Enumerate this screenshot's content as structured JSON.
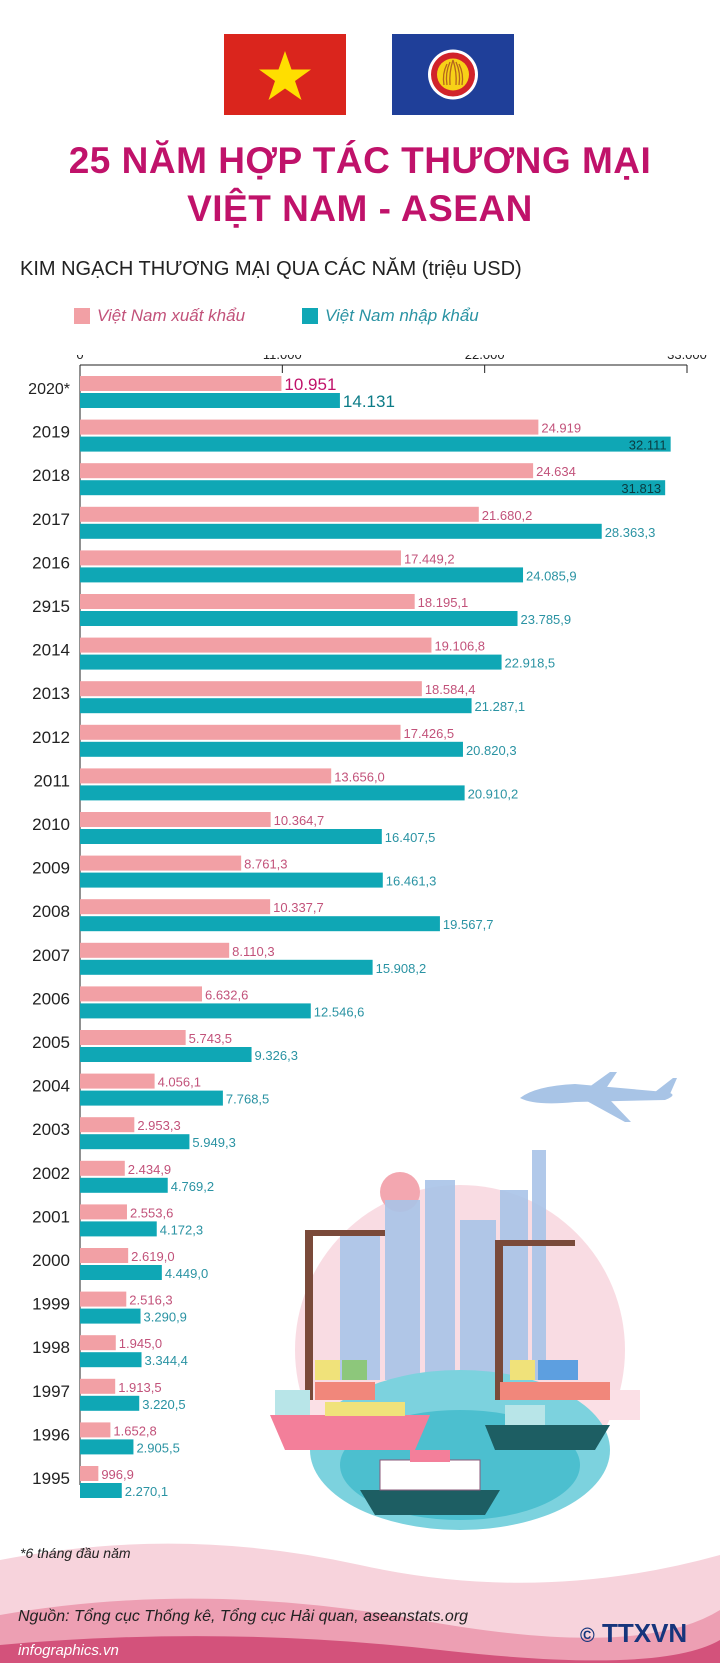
{
  "title_line1": "25 NĂM HỢP TÁC THƯƠNG MẠI",
  "title_line2": "VIỆT NAM - ASEAN",
  "legend": {
    "export_label": "Việt Nam xuất khẩu",
    "import_label": "Việt Nam nhập khẩu"
  },
  "footnote": "*6 tháng đầu năm",
  "source": "Nguồn: Tổng cục Thống kê, Tổng cục Hải quan, aseanstats.org",
  "site": "infographics.vn",
  "agency": "TTXVN",
  "colors": {
    "title": "#c0126a",
    "export": "#f2a0a5",
    "import": "#0fa7b5",
    "export_text": "#c2527a",
    "import_text": "#2a93a3",
    "vn_flag": "#da251d",
    "asean_flag": "#1f3f99"
  },
  "chart_data": {
    "type": "bar",
    "orientation": "horizontal",
    "title": "KIM NGẠCH THƯƠNG MẠI QUA CÁC NĂM (triệu USD)",
    "xlim": [
      0,
      33000
    ],
    "x_ticks": [
      "0",
      "11.000",
      "22.000",
      "33.000"
    ],
    "x_tick_values": [
      0,
      11000,
      22000,
      33000
    ],
    "categories": [
      "2020*",
      "2019",
      "2018",
      "2017",
      "2016",
      "2915",
      "2014",
      "2013",
      "2012",
      "2011",
      "2010",
      "2009",
      "2008",
      "2007",
      "2006",
      "2005",
      "2004",
      "2003",
      "2002",
      "2001",
      "2000",
      "1999",
      "1998",
      "1997",
      "1996",
      "1995"
    ],
    "series": [
      {
        "name": "Việt Nam xuất khẩu",
        "values": [
          10951,
          24919,
          24634,
          21680.2,
          17449.2,
          18195.1,
          19106.8,
          18584.4,
          17426.5,
          13656.0,
          10364.7,
          8761.3,
          10337.7,
          8110.3,
          6632.6,
          5743.5,
          4056.1,
          2953.3,
          2434.9,
          2553.6,
          2619.0,
          2516.3,
          1945.0,
          1913.5,
          1652.8,
          996.9
        ],
        "labels": [
          "10.951",
          "24.919",
          "24.634",
          "21.680,2",
          "17.449,2",
          "18.195,1",
          "19.106,8",
          "18.584,4",
          "17.426,5",
          "13.656,0",
          "10.364,7",
          "8.761,3",
          "10.337,7",
          "8.110,3",
          "6.632,6",
          "5.743,5",
          "4.056,1",
          "2.953,3",
          "2.434,9",
          "2.553,6",
          "2.619,0",
          "2.516,3",
          "1.945,0",
          "1.913,5",
          "1.652,8",
          "996,9"
        ]
      },
      {
        "name": "Việt Nam nhập khẩu",
        "values": [
          14131,
          32111,
          31813,
          28363.3,
          24085.9,
          23785.9,
          22918.5,
          21287.1,
          20820.3,
          20910.2,
          16407.5,
          16461.3,
          19567.7,
          15908.2,
          12546.6,
          9326.3,
          7768.5,
          5949.3,
          4769.2,
          4172.3,
          4449.0,
          3290.9,
          3344.4,
          3220.5,
          2905.5,
          2270.1
        ],
        "labels": [
          "14.131",
          "32.111",
          "31.813",
          "28.363,3",
          "24.085,9",
          "23.785,9",
          "22.918,5",
          "21.287,1",
          "20.820,3",
          "20.910,2",
          "16.407,5",
          "16.461,3",
          "19.567,7",
          "15.908,2",
          "12.546,6",
          "9.326,3",
          "7.768,5",
          "5.949,3",
          "4.769,2",
          "4.172,3",
          "4.449,0",
          "3.290,9",
          "3.344,4",
          "3.220,5",
          "2.905,5",
          "2.270,1"
        ]
      }
    ]
  }
}
